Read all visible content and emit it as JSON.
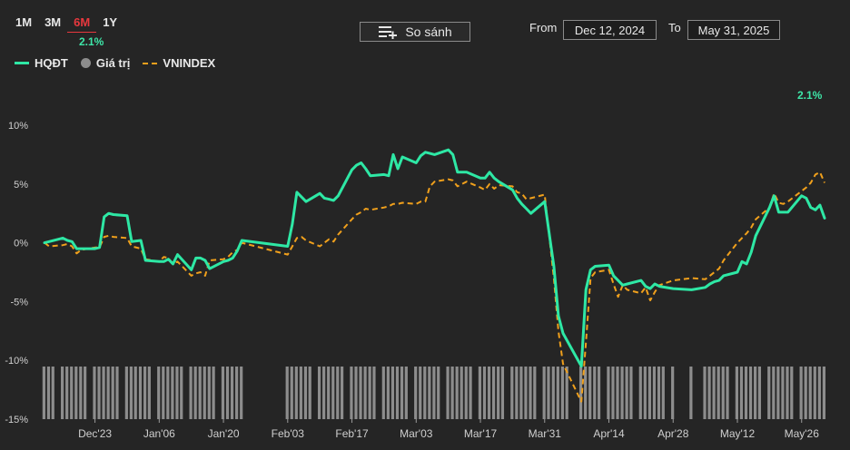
{
  "periods": [
    {
      "label": "1M",
      "active": false
    },
    {
      "label": "3M",
      "active": false
    },
    {
      "label": "6M",
      "active": true
    },
    {
      "label": "1Y",
      "active": false
    }
  ],
  "active_period_return": "2.1%",
  "compare_label": "So sánh",
  "date_range": {
    "from_label": "From",
    "from_value": "Dec 12, 2024",
    "to_label": "To",
    "to_value": "May 31, 2025"
  },
  "last_value_label": "2.1%",
  "colors": {
    "hqdt": "#2ee8a5",
    "vnindex": "#f0a01c",
    "volume": "#8d8d8d",
    "active_tab": "#e8383e"
  },
  "chart_data": {
    "type": "line",
    "ylim": [
      -15,
      10
    ],
    "yticks": [
      "10%",
      "5%",
      "0%",
      "-5%",
      "-10%",
      "-15%"
    ],
    "x_tick_labels": [
      "Dec'23",
      "Jan'06",
      "Jan'20",
      "Feb'03",
      "Feb'17",
      "Mar'03",
      "Mar'17",
      "Mar'31",
      "Apr'14",
      "Apr'28",
      "May'12",
      "May'26"
    ],
    "x_start_date": "2024-12-12",
    "x_end_date": "2025-05-31",
    "legend": [
      "HQĐT",
      "Giá trị",
      "VNINDEX"
    ],
    "series": [
      {
        "name": "HQĐT",
        "style": "solid",
        "points": [
          [
            "2024-12-12",
            0.0
          ],
          [
            "2024-12-13",
            0.1
          ],
          [
            "2024-12-16",
            0.4
          ],
          [
            "2024-12-17",
            0.2
          ],
          [
            "2024-12-18",
            0.1
          ],
          [
            "2024-12-19",
            -0.5
          ],
          [
            "2024-12-20",
            -0.5
          ],
          [
            "2024-12-23",
            -0.5
          ],
          [
            "2024-12-24",
            -0.4
          ],
          [
            "2024-12-25",
            2.2
          ],
          [
            "2024-12-26",
            2.5
          ],
          [
            "2024-12-27",
            2.4
          ],
          [
            "2024-12-30",
            2.3
          ],
          [
            "2024-12-31",
            0.1
          ],
          [
            "2025-01-02",
            0.2
          ],
          [
            "2025-01-03",
            -1.5
          ],
          [
            "2025-01-06",
            -1.6
          ],
          [
            "2025-01-07",
            -1.6
          ],
          [
            "2025-01-08",
            -1.4
          ],
          [
            "2025-01-09",
            -1.8
          ],
          [
            "2025-01-10",
            -1.0
          ],
          [
            "2025-01-13",
            -2.3
          ],
          [
            "2025-01-14",
            -1.3
          ],
          [
            "2025-01-15",
            -1.3
          ],
          [
            "2025-01-16",
            -1.5
          ],
          [
            "2025-01-17",
            -2.2
          ],
          [
            "2025-01-20",
            -1.6
          ],
          [
            "2025-01-21",
            -1.5
          ],
          [
            "2025-01-22",
            -1.3
          ],
          [
            "2025-01-23",
            -0.7
          ],
          [
            "2025-01-24",
            0.2
          ],
          [
            "2025-02-03",
            -0.3
          ],
          [
            "2025-02-04",
            1.6
          ],
          [
            "2025-02-05",
            4.3
          ],
          [
            "2025-02-06",
            3.9
          ],
          [
            "2025-02-07",
            3.5
          ],
          [
            "2025-02-10",
            4.2
          ],
          [
            "2025-02-11",
            3.8
          ],
          [
            "2025-02-12",
            3.7
          ],
          [
            "2025-02-13",
            3.6
          ],
          [
            "2025-02-14",
            4.0
          ],
          [
            "2025-02-17",
            6.2
          ],
          [
            "2025-02-18",
            6.6
          ],
          [
            "2025-02-19",
            6.8
          ],
          [
            "2025-02-20",
            6.3
          ],
          [
            "2025-02-21",
            5.7
          ],
          [
            "2025-02-24",
            5.8
          ],
          [
            "2025-02-25",
            5.7
          ],
          [
            "2025-02-26",
            7.5
          ],
          [
            "2025-02-27",
            6.3
          ],
          [
            "2025-02-28",
            7.3
          ],
          [
            "2025-03-03",
            6.8
          ],
          [
            "2025-03-04",
            7.4
          ],
          [
            "2025-03-05",
            7.7
          ],
          [
            "2025-03-06",
            7.6
          ],
          [
            "2025-03-07",
            7.5
          ],
          [
            "2025-03-10",
            7.9
          ],
          [
            "2025-03-11",
            7.5
          ],
          [
            "2025-03-12",
            6.0
          ],
          [
            "2025-03-13",
            6.0
          ],
          [
            "2025-03-14",
            6.0
          ],
          [
            "2025-03-17",
            5.5
          ],
          [
            "2025-03-18",
            5.5
          ],
          [
            "2025-03-19",
            6.0
          ],
          [
            "2025-03-20",
            5.5
          ],
          [
            "2025-03-21",
            5.2
          ],
          [
            "2025-03-24",
            4.5
          ],
          [
            "2025-03-25",
            3.8
          ],
          [
            "2025-03-26",
            3.3
          ],
          [
            "2025-03-27",
            2.9
          ],
          [
            "2025-03-28",
            2.5
          ],
          [
            "2025-03-31",
            3.5
          ],
          [
            "2025-04-02",
            -2.0
          ],
          [
            "2025-04-03",
            -6.2
          ],
          [
            "2025-04-04",
            -7.7
          ],
          [
            "2025-04-08",
            -10.5
          ],
          [
            "2025-04-09",
            -4.0
          ],
          [
            "2025-04-10",
            -2.3
          ],
          [
            "2025-04-11",
            -2.0
          ],
          [
            "2025-04-14",
            -1.9
          ],
          [
            "2025-04-15",
            -2.8
          ],
          [
            "2025-04-16",
            -3.2
          ],
          [
            "2025-04-17",
            -3.6
          ],
          [
            "2025-04-18",
            -3.5
          ],
          [
            "2025-04-21",
            -3.2
          ],
          [
            "2025-04-22",
            -3.7
          ],
          [
            "2025-04-23",
            -3.9
          ],
          [
            "2025-04-24",
            -3.5
          ],
          [
            "2025-04-25",
            -3.7
          ],
          [
            "2025-04-28",
            -3.9
          ],
          [
            "2025-05-02",
            -4.0
          ],
          [
            "2025-05-05",
            -3.8
          ],
          [
            "2025-05-06",
            -3.5
          ],
          [
            "2025-05-07",
            -3.3
          ],
          [
            "2025-05-08",
            -3.2
          ],
          [
            "2025-05-09",
            -2.8
          ],
          [
            "2025-05-12",
            -2.5
          ],
          [
            "2025-05-13",
            -1.6
          ],
          [
            "2025-05-14",
            -1.8
          ],
          [
            "2025-05-15",
            -0.8
          ],
          [
            "2025-05-16",
            0.6
          ],
          [
            "2025-05-19",
            3.0
          ],
          [
            "2025-05-20",
            4.0
          ],
          [
            "2025-05-21",
            2.6
          ],
          [
            "2025-05-22",
            2.6
          ],
          [
            "2025-05-23",
            2.6
          ],
          [
            "2025-05-26",
            4.0
          ],
          [
            "2025-05-27",
            3.8
          ],
          [
            "2025-05-28",
            3.0
          ],
          [
            "2025-05-29",
            2.8
          ],
          [
            "2025-05-30",
            3.2
          ],
          [
            "2025-05-31",
            2.1
          ]
        ]
      },
      {
        "name": "VNINDEX",
        "style": "dashed",
        "points": [
          [
            "2024-12-12",
            0.0
          ],
          [
            "2024-12-13",
            -0.3
          ],
          [
            "2024-12-16",
            -0.2
          ],
          [
            "2024-12-17",
            -0.1
          ],
          [
            "2024-12-18",
            -0.3
          ],
          [
            "2024-12-19",
            -0.9
          ],
          [
            "2024-12-20",
            -0.6
          ],
          [
            "2024-12-23",
            -0.4
          ],
          [
            "2024-12-24",
            -0.4
          ],
          [
            "2024-12-25",
            0.5
          ],
          [
            "2024-12-26",
            0.6
          ],
          [
            "2024-12-27",
            0.5
          ],
          [
            "2024-12-30",
            0.4
          ],
          [
            "2024-12-31",
            -0.3
          ],
          [
            "2025-01-02",
            -0.5
          ],
          [
            "2025-01-03",
            -1.4
          ],
          [
            "2025-01-06",
            -1.6
          ],
          [
            "2025-01-07",
            -1.2
          ],
          [
            "2025-01-08",
            -1.3
          ],
          [
            "2025-01-09",
            -1.8
          ],
          [
            "2025-01-10",
            -1.6
          ],
          [
            "2025-01-13",
            -2.8
          ],
          [
            "2025-01-14",
            -2.6
          ],
          [
            "2025-01-15",
            -2.5
          ],
          [
            "2025-01-16",
            -2.8
          ],
          [
            "2025-01-17",
            -1.5
          ],
          [
            "2025-01-20",
            -1.4
          ],
          [
            "2025-01-21",
            -1.2
          ],
          [
            "2025-01-22",
            -0.8
          ],
          [
            "2025-01-23",
            -0.6
          ],
          [
            "2025-01-24",
            0.0
          ],
          [
            "2025-02-03",
            -1.0
          ],
          [
            "2025-02-04",
            -0.3
          ],
          [
            "2025-02-05",
            0.4
          ],
          [
            "2025-02-06",
            0.5
          ],
          [
            "2025-02-07",
            0.2
          ],
          [
            "2025-02-10",
            -0.3
          ],
          [
            "2025-02-11",
            0.0
          ],
          [
            "2025-02-12",
            0.3
          ],
          [
            "2025-02-13",
            0.1
          ],
          [
            "2025-02-14",
            0.7
          ],
          [
            "2025-02-17",
            2.0
          ],
          [
            "2025-02-18",
            2.4
          ],
          [
            "2025-02-19",
            2.6
          ],
          [
            "2025-02-20",
            2.9
          ],
          [
            "2025-02-21",
            2.8
          ],
          [
            "2025-02-24",
            3.0
          ],
          [
            "2025-02-25",
            3.1
          ],
          [
            "2025-02-26",
            3.3
          ],
          [
            "2025-02-27",
            3.3
          ],
          [
            "2025-02-28",
            3.4
          ],
          [
            "2025-03-03",
            3.3
          ],
          [
            "2025-03-04",
            3.5
          ],
          [
            "2025-03-05",
            3.5
          ],
          [
            "2025-03-06",
            4.8
          ],
          [
            "2025-03-07",
            5.2
          ],
          [
            "2025-03-10",
            5.4
          ],
          [
            "2025-03-11",
            5.3
          ],
          [
            "2025-03-12",
            4.8
          ],
          [
            "2025-03-13",
            5.0
          ],
          [
            "2025-03-14",
            5.2
          ],
          [
            "2025-03-17",
            4.7
          ],
          [
            "2025-03-18",
            4.5
          ],
          [
            "2025-03-19",
            5.0
          ],
          [
            "2025-03-20",
            4.6
          ],
          [
            "2025-03-21",
            4.9
          ],
          [
            "2025-03-24",
            4.8
          ],
          [
            "2025-03-25",
            4.3
          ],
          [
            "2025-03-26",
            4.2
          ],
          [
            "2025-03-27",
            3.7
          ],
          [
            "2025-03-28",
            3.8
          ],
          [
            "2025-03-31",
            4.1
          ],
          [
            "2025-04-02",
            -3.0
          ],
          [
            "2025-04-03",
            -7.5
          ],
          [
            "2025-04-04",
            -10.3
          ],
          [
            "2025-04-08",
            -13.5
          ],
          [
            "2025-04-09",
            -8.5
          ],
          [
            "2025-04-10",
            -3.0
          ],
          [
            "2025-04-11",
            -2.5
          ],
          [
            "2025-04-14",
            -2.3
          ],
          [
            "2025-04-15",
            -3.5
          ],
          [
            "2025-04-16",
            -4.6
          ],
          [
            "2025-04-17",
            -3.6
          ],
          [
            "2025-04-18",
            -4.0
          ],
          [
            "2025-04-21",
            -4.3
          ],
          [
            "2025-04-22",
            -3.8
          ],
          [
            "2025-04-23",
            -4.9
          ],
          [
            "2025-04-24",
            -4.2
          ],
          [
            "2025-04-25",
            -3.6
          ],
          [
            "2025-04-28",
            -3.2
          ],
          [
            "2025-05-02",
            -3.0
          ],
          [
            "2025-05-05",
            -3.1
          ],
          [
            "2025-05-06",
            -2.8
          ],
          [
            "2025-05-07",
            -2.5
          ],
          [
            "2025-05-08",
            -2.2
          ],
          [
            "2025-05-09",
            -1.5
          ],
          [
            "2025-05-12",
            0.0
          ],
          [
            "2025-05-13",
            0.4
          ],
          [
            "2025-05-14",
            0.8
          ],
          [
            "2025-05-15",
            1.3
          ],
          [
            "2025-05-16",
            2.0
          ],
          [
            "2025-05-19",
            3.0
          ],
          [
            "2025-05-20",
            4.2
          ],
          [
            "2025-05-21",
            3.4
          ],
          [
            "2025-05-22",
            3.3
          ],
          [
            "2025-05-23",
            3.5
          ],
          [
            "2025-05-26",
            4.4
          ],
          [
            "2025-05-27",
            4.7
          ],
          [
            "2025-05-28",
            5.1
          ],
          [
            "2025-05-29",
            5.8
          ],
          [
            "2025-05-30",
            6.0
          ],
          [
            "2025-05-31",
            5.1
          ]
        ]
      }
    ],
    "volume_bars": {
      "name": "Giá trị",
      "note": "uniform relative heights (fraction of bar area)",
      "count": 133,
      "height_fraction": 1.0
    }
  }
}
